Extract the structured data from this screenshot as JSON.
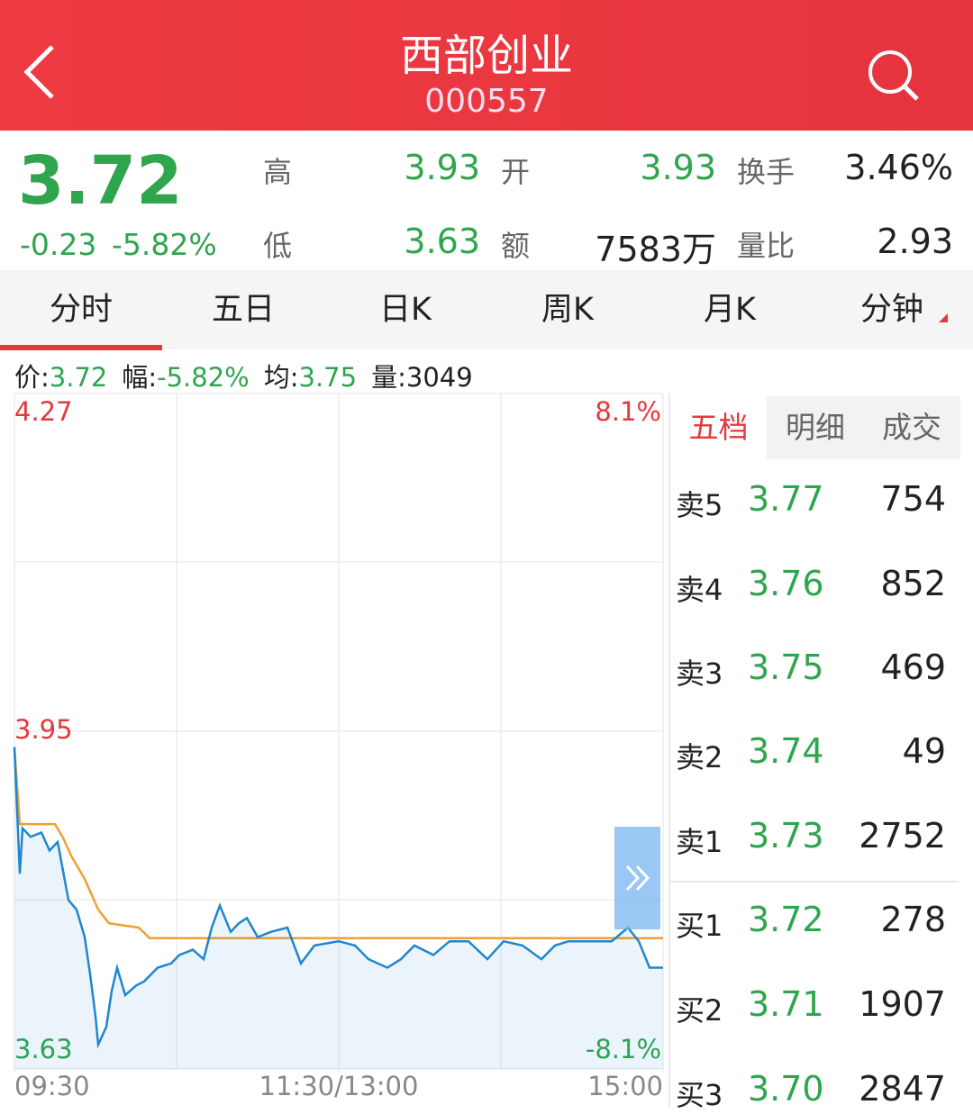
{
  "header": {
    "title": "西部创业",
    "code": "000557"
  },
  "quote": {
    "price": "3.72",
    "change": "-0.23",
    "change_pct": "-5.82%",
    "stats": [
      {
        "label": "高",
        "value": "3.93"
      },
      {
        "label": "开",
        "value": "3.93"
      },
      {
        "label": "换手",
        "value": "3.46%"
      },
      {
        "label": "低",
        "value": "3.63"
      },
      {
        "label": "额",
        "value": "7583万"
      },
      {
        "label": "量比",
        "value": "2.93"
      }
    ]
  },
  "tabs": [
    "分时",
    "五日",
    "日K",
    "周K",
    "月K",
    "分钟"
  ],
  "info_bar": [
    {
      "label": "价:",
      "value": "3.72"
    },
    {
      "label": "幅:",
      "value": "-5.82%"
    },
    {
      "label": "均:",
      "value": "3.75"
    },
    {
      "label": "量:",
      "value": "3049"
    }
  ],
  "chart_data": {
    "type": "line",
    "xlim": [
      0,
      240
    ],
    "xticks": [
      {
        "value": 0,
        "label": "09:30"
      },
      {
        "value": 120,
        "label": "11:30/13:00"
      },
      {
        "value": 240,
        "label": "15:00"
      }
    ],
    "ylim": [
      3.63,
      4.27
    ],
    "yticks": [
      4.27,
      3.95,
      3.63
    ],
    "y2lim": [
      -8.1,
      8.1
    ],
    "y2ticks": [
      {
        "value": 8.1,
        "label": "8.1%"
      },
      {
        "value": -8.1,
        "label": "-8.1%"
      }
    ],
    "series": [
      {
        "color": "#1f86cf",
        "x": [
          0,
          2,
          3,
          6,
          10,
          13,
          16,
          20,
          23,
          26,
          28,
          30,
          31,
          34,
          36,
          38,
          41,
          45,
          48,
          53,
          58,
          61,
          66,
          70,
          73,
          76,
          80,
          83,
          86,
          90,
          95,
          101,
          106,
          111,
          120,
          126,
          131,
          138,
          143,
          148,
          155,
          161,
          168,
          175,
          181,
          188,
          195,
          200,
          205,
          215,
          221,
          227,
          231,
          235,
          240
        ],
        "values": [
          3.935,
          3.815,
          3.858,
          3.85,
          3.854,
          3.837,
          3.845,
          3.79,
          3.781,
          3.755,
          3.72,
          3.68,
          3.653,
          3.67,
          3.704,
          3.726,
          3.7,
          3.709,
          3.713,
          3.726,
          3.73,
          3.738,
          3.743,
          3.734,
          3.764,
          3.785,
          3.76,
          3.768,
          3.773,
          3.755,
          3.76,
          3.764,
          3.73,
          3.747,
          3.751,
          3.747,
          3.734,
          3.726,
          3.734,
          3.747,
          3.738,
          3.751,
          3.751,
          3.734,
          3.751,
          3.747,
          3.734,
          3.747,
          3.751,
          3.751,
          3.751,
          3.764,
          3.751,
          3.726,
          3.726
        ]
      },
      {
        "color": "#f0a032",
        "x": [
          0,
          2,
          15,
          18,
          21,
          26,
          31,
          35,
          46,
          50,
          240
        ],
        "values": [
          3.935,
          3.862,
          3.862,
          3.849,
          3.832,
          3.81,
          3.781,
          3.768,
          3.764,
          3.754,
          3.754
        ]
      }
    ]
  },
  "order_book": {
    "tabs": [
      "五档",
      "明细",
      "成交"
    ],
    "rows": [
      {
        "label": "卖5",
        "price": "3.77",
        "volume": "754"
      },
      {
        "label": "卖4",
        "price": "3.76",
        "volume": "852"
      },
      {
        "label": "卖3",
        "price": "3.75",
        "volume": "469"
      },
      {
        "label": "卖2",
        "price": "3.74",
        "volume": "49"
      },
      {
        "label": "卖1",
        "price": "3.73",
        "volume": "2752"
      },
      {
        "label": "买1",
        "price": "3.72",
        "volume": "278"
      },
      {
        "label": "买2",
        "price": "3.71",
        "volume": "1907"
      },
      {
        "label": "买3",
        "price": "3.70",
        "volume": "2847"
      }
    ]
  }
}
